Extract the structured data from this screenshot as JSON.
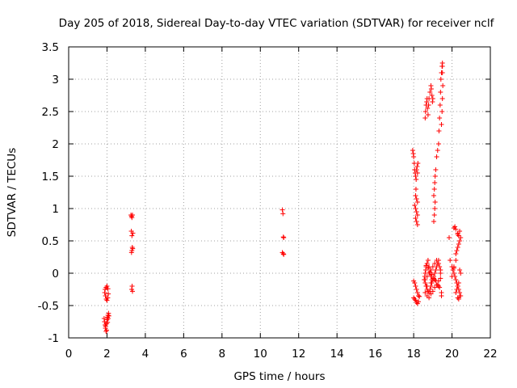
{
  "chart_data": {
    "type": "scatter",
    "title": "Day 205 of 2018, Sidereal Day-to-day VTEC variation (SDTVAR) for receiver nclf",
    "xlabel": "GPS time / hours",
    "ylabel": "SDTVAR / TECUs",
    "xlim": [
      0,
      22
    ],
    "ylim": [
      -1,
      3.5
    ],
    "xticks": [
      "0",
      "2",
      "4",
      "6",
      "8",
      "10",
      "12",
      "14",
      "16",
      "18",
      "20",
      "22"
    ],
    "yticks": [
      "-1",
      "-0.5",
      "0",
      "0.5",
      "1",
      "1.5",
      "2",
      "2.5",
      "3",
      "3.5"
    ],
    "grid": true,
    "marker": "+",
    "color": "#ff0000",
    "series": [
      {
        "name": "SDTVAR",
        "x": [
          1.85,
          1.87,
          1.9,
          1.92,
          1.95,
          1.97,
          2.0,
          2.02,
          2.05,
          2.08,
          2.1,
          1.88,
          1.92,
          1.96,
          2.0,
          2.04,
          2.07,
          1.9,
          1.95,
          2.0,
          2.05,
          1.93,
          1.98,
          2.03,
          2.06,
          3.25,
          3.28,
          3.3,
          3.33,
          3.35,
          3.3,
          3.27,
          3.32,
          3.3,
          3.28,
          3.34,
          3.31,
          3.29,
          3.33,
          11.15,
          11.18,
          11.2,
          11.22,
          11.15,
          11.2,
          11.22,
          17.95,
          17.98,
          18.0,
          18.03,
          18.05,
          18.08,
          18.1,
          18.13,
          18.15,
          18.18,
          18.2,
          18.22,
          18.1,
          18.15,
          18.2,
          18.05,
          18.1,
          18.15,
          18.2,
          18.1,
          18.15,
          18.2,
          18.0,
          18.05,
          18.1,
          18.15,
          18.2,
          18.25,
          18.0,
          18.05,
          18.1,
          18.15,
          18.2,
          18.25,
          18.3,
          18.12,
          18.55,
          18.58,
          18.6,
          18.63,
          18.65,
          18.7,
          18.75,
          18.8,
          18.85,
          18.9,
          18.95,
          18.6,
          18.65,
          18.7,
          18.75,
          18.8,
          18.85,
          18.9,
          18.95,
          19.0,
          19.05,
          19.1,
          19.15,
          19.2,
          19.25,
          19.3,
          19.35,
          19.4,
          18.6,
          18.7,
          18.8,
          18.9,
          19.0,
          19.1,
          19.2,
          19.3,
          19.4,
          18.65,
          18.75,
          18.85,
          18.95,
          19.05,
          19.15,
          19.25,
          19.35,
          18.6,
          18.7,
          18.8,
          18.9,
          19.0,
          19.1,
          19.2,
          19.3,
          19.4,
          19.45,
          18.7,
          18.9,
          19.1,
          19.3,
          19.45,
          18.6,
          18.62,
          18.65,
          18.68,
          18.7,
          18.72,
          18.75,
          18.78,
          18.8,
          18.85,
          18.9,
          18.92,
          18.95,
          18.98,
          19.0,
          19.05,
          19.08,
          19.1,
          19.12,
          19.15,
          19.1,
          19.05,
          19.08,
          19.12,
          19.2,
          19.25,
          19.3,
          19.32,
          19.35,
          19.38,
          19.4,
          19.42,
          19.45,
          19.48,
          19.5,
          19.5,
          19.52,
          19.5,
          19.48,
          19.45,
          19.5,
          19.85,
          19.9,
          20.0,
          20.05,
          20.1,
          20.15,
          20.2,
          20.25,
          20.3,
          20.35,
          20.4,
          20.45,
          20.3,
          20.35,
          20.4,
          20.2,
          20.25,
          20.3,
          20.35,
          20.4,
          20.45,
          20.1,
          20.2,
          20.3,
          20.4,
          20.1,
          20.15,
          20.2,
          20.3,
          20.35,
          20.4,
          20.45,
          20.0,
          20.1,
          20.2,
          20.25,
          20.3,
          20.35
        ],
        "y": [
          -0.7,
          -0.75,
          -0.8,
          -0.85,
          -0.9,
          -0.78,
          -0.72,
          -0.68,
          -0.65,
          -0.62,
          -0.66,
          -0.3,
          -0.35,
          -0.4,
          -0.42,
          -0.38,
          -0.32,
          -0.25,
          -0.22,
          -0.2,
          -0.24,
          -0.82,
          -0.88,
          -0.76,
          -0.7,
          0.9,
          0.88,
          0.86,
          0.9,
          0.62,
          0.58,
          0.65,
          0.4,
          0.35,
          0.32,
          0.38,
          -0.2,
          -0.25,
          -0.28,
          0.98,
          0.92,
          0.56,
          0.55,
          0.32,
          0.3,
          0.29,
          1.9,
          1.85,
          1.8,
          1.7,
          1.6,
          1.55,
          1.5,
          1.45,
          1.6,
          1.65,
          1.55,
          1.7,
          1.2,
          1.15,
          1.1,
          1.05,
          1.0,
          0.95,
          0.9,
          0.85,
          0.8,
          0.75,
          -0.12,
          -0.15,
          -0.2,
          -0.25,
          -0.3,
          -0.35,
          -0.38,
          -0.4,
          -0.42,
          -0.45,
          -0.47,
          -0.44,
          -0.36,
          1.3,
          -0.1,
          -0.05,
          0.0,
          0.05,
          0.1,
          0.15,
          0.2,
          0.1,
          0.0,
          -0.05,
          -0.1,
          -0.15,
          -0.2,
          -0.25,
          -0.28,
          -0.3,
          -0.25,
          -0.2,
          -0.15,
          -0.1,
          -0.05,
          0.0,
          0.05,
          0.1,
          0.15,
          0.2,
          0.1,
          0.0,
          -0.1,
          -0.05,
          0.0,
          0.05,
          0.1,
          0.15,
          0.2,
          0.15,
          0.05,
          0.12,
          0.08,
          0.02,
          -0.02,
          -0.08,
          -0.12,
          -0.18,
          -0.22,
          -0.3,
          -0.35,
          -0.38,
          -0.32,
          -0.28,
          -0.22,
          -0.18,
          -0.12,
          -0.08,
          -0.3,
          -0.2,
          -0.15,
          -0.1,
          -0.2,
          -0.35,
          2.4,
          2.5,
          2.6,
          2.65,
          2.7,
          2.55,
          2.45,
          2.6,
          2.7,
          2.8,
          2.9,
          2.85,
          2.75,
          2.65,
          2.7,
          1.2,
          1.3,
          1.4,
          1.5,
          1.6,
          1.0,
          0.8,
          0.9,
          1.1,
          1.8,
          1.9,
          2.0,
          2.2,
          2.4,
          2.6,
          2.8,
          3.0,
          3.1,
          3.2,
          3.25,
          3.1,
          2.9,
          2.7,
          2.5,
          2.3,
          3.2,
          0.55,
          0.2,
          0.1,
          0.05,
          0.0,
          -0.05,
          -0.1,
          -0.15,
          -0.2,
          -0.25,
          -0.3,
          -0.35,
          -0.38,
          -0.4,
          -0.35,
          0.3,
          0.35,
          0.4,
          0.45,
          0.5,
          0.55,
          0.1,
          0.2,
          0.6,
          0.65,
          0.7,
          0.72,
          0.68,
          0.62,
          0.58,
          0.05,
          0.0,
          -0.05,
          0.08,
          -0.3,
          -0.25,
          -0.2,
          -0.15
        ]
      }
    ]
  }
}
